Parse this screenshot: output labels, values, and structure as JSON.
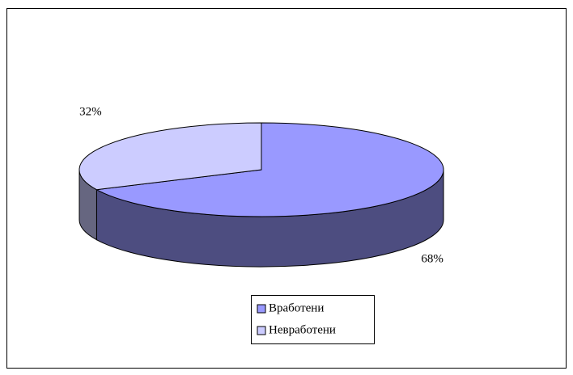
{
  "chart_data": {
    "type": "pie",
    "categories": [
      "Вработени",
      "Невработени"
    ],
    "values": [
      68,
      32
    ],
    "value_labels": [
      "68%",
      "32%"
    ],
    "colors": [
      "#9999ff",
      "#ccccff"
    ],
    "legend": "bottom"
  }
}
